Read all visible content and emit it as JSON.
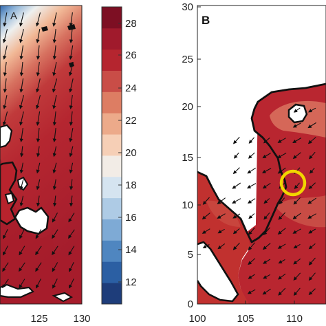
{
  "panel_a": {
    "x_ticks": [
      "125",
      "130"
    ],
    "partial_letter": "A"
  },
  "colorbar": {
    "ticks": [
      "28",
      "26",
      "24",
      "22",
      "20",
      "18",
      "16",
      "14",
      "12"
    ],
    "colors": [
      "#1e3d7a",
      "#2b5fa3",
      "#4f86c0",
      "#7eaad5",
      "#aecbe5",
      "#d5e4f0",
      "#f2ece6",
      "#f6cfb6",
      "#ecaa8a",
      "#dd7d63",
      "#c94d47",
      "#b5252f",
      "#a01a2c",
      "#7d0f23"
    ]
  },
  "panel_b": {
    "letter": "B",
    "y_ticks": [
      "30",
      "25",
      "20",
      "15",
      "10",
      "5",
      "0"
    ],
    "x_ticks": [
      "100",
      "105",
      "110"
    ],
    "marker_color": "#f2d600"
  }
}
